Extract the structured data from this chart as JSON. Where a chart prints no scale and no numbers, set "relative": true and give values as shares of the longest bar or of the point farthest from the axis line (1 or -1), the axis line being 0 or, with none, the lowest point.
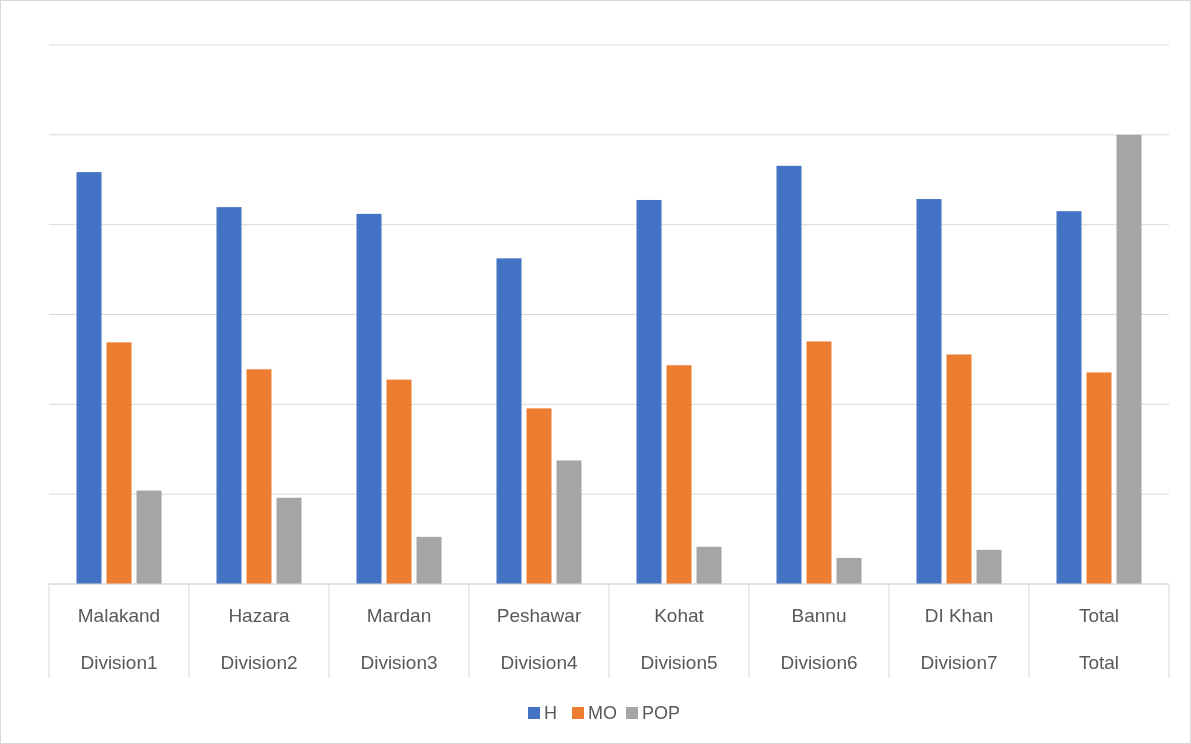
{
  "chart_data": {
    "type": "bar",
    "relative": true,
    "grid": true,
    "legend": "bottom",
    "categories": [
      "Malakand\nDivision1",
      "Hazara\nDivision2",
      "Mardan\nDivision3",
      "Peshawar\nDivision4",
      "Kohat\nDivision5",
      "Bannu\nDivision6",
      "DI Khan\nDivision7",
      "Total\nTotal"
    ],
    "series": [
      {
        "name": "H",
        "color": "#4472c4",
        "values": [
          0.917,
          0.839,
          0.824,
          0.725,
          0.855,
          0.931,
          0.857,
          0.83
        ]
      },
      {
        "name": "MO",
        "color": "#ed7d31",
        "values": [
          0.538,
          0.478,
          0.455,
          0.391,
          0.487,
          0.54,
          0.511,
          0.471
        ]
      },
      {
        "name": "POP",
        "color": "#a5a5a5",
        "values": [
          0.208,
          0.192,
          0.105,
          0.275,
          0.083,
          0.058,
          0.076,
          1
        ]
      }
    ]
  }
}
